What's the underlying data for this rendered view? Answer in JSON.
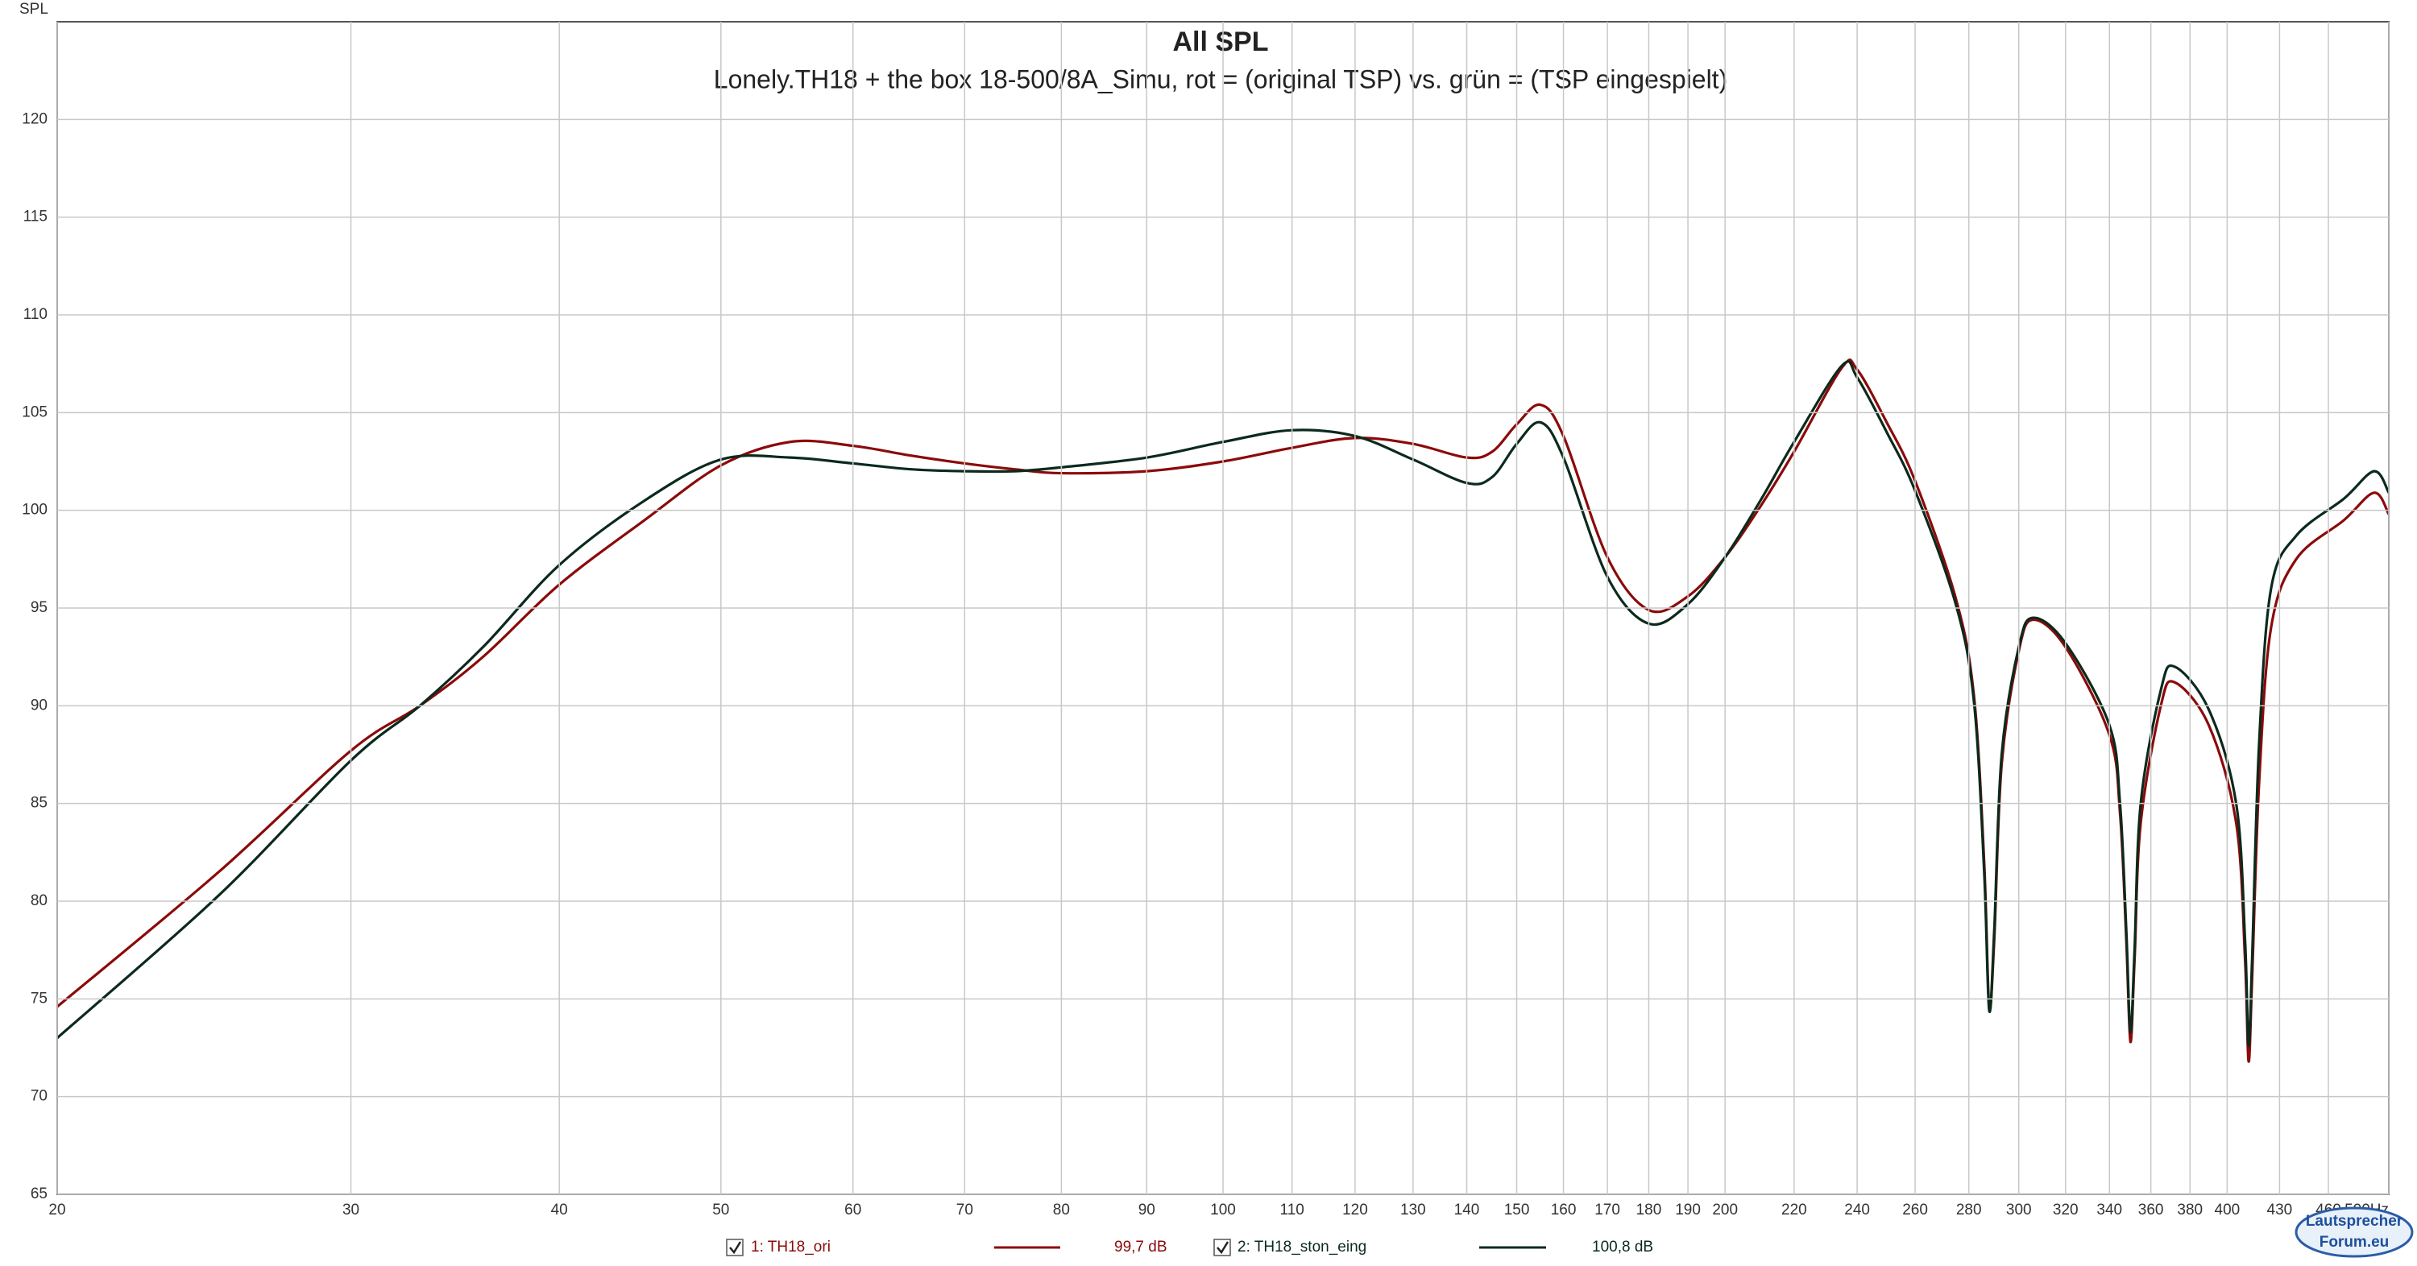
{
  "chart_data": {
    "type": "line",
    "title": "All SPL",
    "subtitle": "Lonely.TH18 + the box 18-500/8A_Simu,  rot = (original TSP)  vs.  grün = (TSP eingespielt)",
    "y_label": "SPL",
    "x_scale": "log",
    "grid": true,
    "x": [
      20,
      25,
      30,
      33,
      36,
      40,
      45,
      50,
      55,
      60,
      65,
      70,
      75,
      80,
      90,
      100,
      110,
      120,
      130,
      140,
      145,
      150,
      155,
      160,
      170,
      180,
      190,
      200,
      210,
      220,
      235,
      240,
      250,
      260,
      275,
      282,
      286,
      288,
      290,
      293,
      300,
      306,
      320,
      340,
      345,
      348,
      350,
      352,
      355,
      365,
      372,
      390,
      405,
      410,
      412,
      414,
      418,
      425,
      440,
      470,
      490,
      500
    ],
    "series": [
      {
        "name": "1: TH18_ori",
        "level": "99,7 dB",
        "color": "#8b0a0a",
        "values": [
          74.6,
          81.5,
          87.7,
          90.0,
          92.5,
          96.2,
          99.5,
          102.3,
          103.5,
          103.3,
          102.8,
          102.4,
          102.1,
          101.9,
          102.0,
          102.5,
          103.2,
          103.7,
          103.4,
          102.7,
          103.0,
          104.4,
          105.4,
          103.8,
          97.6,
          94.9,
          95.6,
          97.6,
          100.2,
          103.0,
          107.3,
          107.2,
          104.5,
          101.5,
          95.5,
          90.5,
          82,
          74.6,
          78,
          87,
          92.8,
          94.4,
          93.0,
          88.5,
          84.5,
          78,
          72.8,
          77,
          84,
          90.0,
          91.2,
          89.0,
          84,
          77,
          71.8,
          76,
          86,
          94.0,
          97.5,
          99.5,
          100.9,
          99.8
        ]
      },
      {
        "name": "2: TH18_ston_eing",
        "level": "100,8 dB",
        "color": "#0b2a1c",
        "values": [
          73.0,
          80.3,
          87.2,
          90.0,
          93.0,
          97.2,
          100.5,
          102.6,
          102.7,
          102.4,
          102.1,
          102.0,
          102.0,
          102.2,
          102.7,
          103.5,
          104.1,
          103.8,
          102.6,
          101.4,
          101.7,
          103.4,
          104.5,
          102.7,
          96.6,
          94.2,
          95.2,
          97.6,
          100.5,
          103.5,
          107.4,
          106.8,
          104.0,
          101.0,
          95.2,
          90.2,
          81.5,
          74.4,
          78.5,
          87.5,
          93.0,
          94.5,
          93.2,
          89.0,
          85,
          78.5,
          73.3,
          77.5,
          85,
          90.8,
          92.0,
          89.8,
          85,
          78,
          72.6,
          77,
          88,
          96.0,
          98.7,
          100.6,
          102.0,
          100.9
        ]
      }
    ],
    "xlim": [
      20,
      500
    ],
    "xticks": [
      20,
      30,
      40,
      50,
      60,
      70,
      80,
      90,
      100,
      110,
      120,
      130,
      140,
      150,
      160,
      170,
      180,
      190,
      200,
      220,
      240,
      260,
      280,
      300,
      320,
      340,
      360,
      380,
      400,
      430,
      460,
      {
        "value": 500,
        "label": "500Hz"
      }
    ],
    "ylim": [
      65,
      125
    ],
    "yticks": [
      65,
      70,
      75,
      80,
      85,
      90,
      95,
      100,
      105,
      110,
      115,
      120
    ],
    "logo": [
      "Lautsprecher",
      "Forum.eu"
    ]
  }
}
